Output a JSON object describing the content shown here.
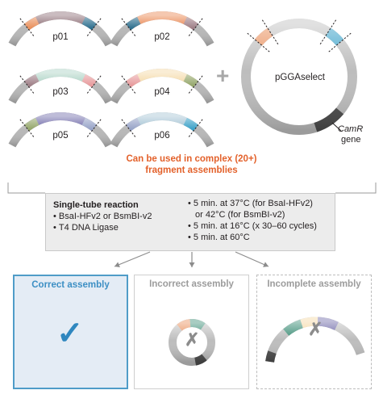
{
  "parts": [
    {
      "label": "p01",
      "fill": "#8a6a72",
      "left": "#e98f5b",
      "right": "#2d6f8e"
    },
    {
      "label": "p02",
      "fill": "#e9854f",
      "left": "#2d6f8e",
      "right": "#9e7e86"
    },
    {
      "label": "p03",
      "fill": "#a9d1c2",
      "left": "#9e7e86",
      "right": "#e79a9c"
    },
    {
      "label": "p04",
      "fill": "#f4d7a1",
      "left": "#e79a9c",
      "right": "#94a66a"
    },
    {
      "label": "p05",
      "fill": "#6e69a8",
      "left": "#94a66a",
      "right": "#97a3c7"
    },
    {
      "label": "p06",
      "fill": "#a3c3d3",
      "left": "#97a3c7",
      "right": "#3aa1c8"
    }
  ],
  "vector": {
    "label": "pGGAselect",
    "marker_line1": "CamR",
    "marker_line2": "gene",
    "left_overhang": "#e98f5b",
    "right_overhang": "#3aa1c8"
  },
  "plus_sign": "+",
  "note": {
    "line1": "Can be used in complex (20+)",
    "line2": "fragment assemblies"
  },
  "reaction": {
    "title": "Single-tube reaction",
    "enzymes": [
      "BsaI-HFv2 or BsmBI-v2",
      "T4 DNA Ligase"
    ],
    "steps": [
      {
        "line": "5 min. at 37°C (for BsaI-HFv2)",
        "cont": "or 42°C (for BsmBI-v2)"
      },
      {
        "line": "5 min. at 16°C (x 30–60 cycles)"
      },
      {
        "line": "5 min. at 60°C"
      }
    ]
  },
  "outcomes": [
    {
      "title": "Correct assembly",
      "mark": "✓"
    },
    {
      "title": "Incorrect assembly",
      "mark": "✗"
    },
    {
      "title": "Incomplete assembly",
      "mark": "✗"
    }
  ],
  "colors": {
    "accent_orange": "#e3612b",
    "check_blue": "#2f87bf",
    "cross_gray": "#8c8c8c",
    "ring_gray": "#bdbdbd",
    "reaction_box": "#ececec"
  }
}
